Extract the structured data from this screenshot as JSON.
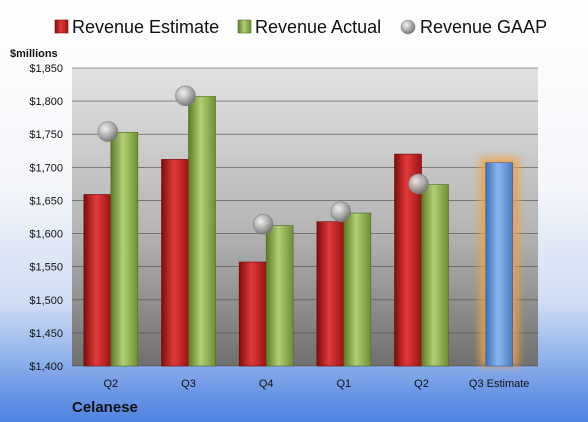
{
  "chart_data": {
    "type": "bar",
    "categories": [
      "Q2",
      "Q3",
      "Q4",
      "Q1",
      "Q2",
      "Q3 Estimate"
    ],
    "series": [
      {
        "name": "Revenue Estimate",
        "type": "bar",
        "color": "#cc1f1f",
        "values": [
          1659,
          1712,
          1557,
          1618,
          1720,
          null
        ]
      },
      {
        "name": "Revenue Actual",
        "type": "bar",
        "color": "#8fb04f",
        "values": [
          1753,
          1807,
          1612,
          1631,
          1674,
          null
        ]
      },
      {
        "name": "Revenue GAAP",
        "type": "marker",
        "color": "#a9a9a9",
        "values": [
          1754,
          1808,
          1614,
          1633,
          1675,
          null
        ]
      }
    ],
    "forecast": {
      "category_index": 5,
      "value": 1707,
      "color": "#6a9be0",
      "glow": "#f4a040"
    },
    "unit_label": "$millions",
    "ylim": [
      1400,
      1850
    ],
    "yticks": [
      1400,
      1450,
      1500,
      1550,
      1600,
      1650,
      1700,
      1750,
      1800,
      1850
    ],
    "ytick_labels": [
      "$1,400",
      "$1,450",
      "$1,500",
      "$1,550",
      "$1,600",
      "$1,650",
      "$1,700",
      "$1,750",
      "$1,800",
      "$1,850"
    ],
    "grid": true,
    "legend_position": "top",
    "company": "Celanese"
  }
}
